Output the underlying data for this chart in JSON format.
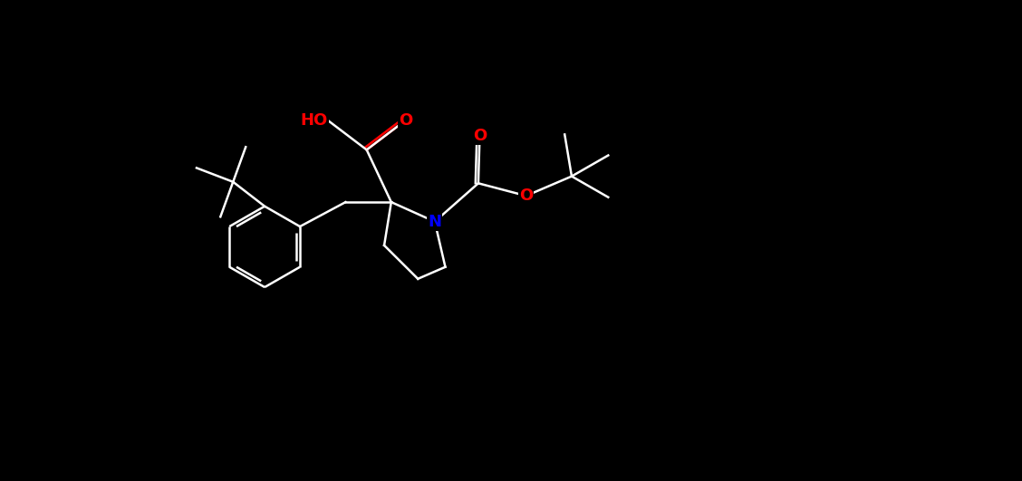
{
  "bg_color": "#000000",
  "bond_color": "#ffffff",
  "atom_colors": {
    "O": "#ff0000",
    "N": "#0000ff",
    "C": "#ffffff"
  },
  "bond_width": 1.8,
  "font_size": 13,
  "figsize": [
    11.28,
    5.31
  ],
  "dpi": 100
}
